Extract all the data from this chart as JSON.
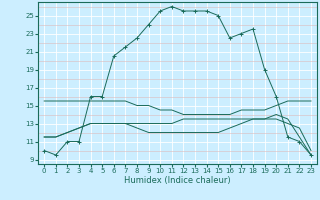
{
  "title": "",
  "xlabel": "Humidex (Indice chaleur)",
  "bg_color": "#cceeff",
  "line_color": "#1a6b5a",
  "xlim": [
    -0.5,
    23.5
  ],
  "ylim": [
    8.5,
    26.5
  ],
  "xticks": [
    0,
    1,
    2,
    3,
    4,
    5,
    6,
    7,
    8,
    9,
    10,
    11,
    12,
    13,
    14,
    15,
    16,
    17,
    18,
    19,
    20,
    21,
    22,
    23
  ],
  "yticks": [
    9,
    11,
    13,
    15,
    17,
    19,
    21,
    23,
    25
  ],
  "curve1_x": [
    0,
    1,
    2,
    3,
    4,
    5,
    6,
    7,
    8,
    9,
    10,
    11,
    12,
    13,
    14,
    15,
    16,
    17,
    18,
    19,
    20,
    21,
    22,
    23
  ],
  "curve1_y": [
    10.0,
    9.5,
    11.0,
    11.0,
    16.0,
    16.0,
    20.5,
    21.5,
    22.5,
    24.0,
    25.5,
    26.0,
    25.5,
    25.5,
    25.5,
    25.0,
    22.5,
    23.0,
    23.5,
    19.0,
    16.0,
    11.5,
    11.0,
    9.5
  ],
  "curve2_x": [
    0,
    1,
    2,
    3,
    4,
    5,
    6,
    7,
    8,
    9,
    10,
    11,
    12,
    13,
    14,
    15,
    16,
    17,
    18,
    19,
    20,
    21,
    22,
    23
  ],
  "curve2_y": [
    15.5,
    15.5,
    15.5,
    15.5,
    15.5,
    15.5,
    15.5,
    15.5,
    15.0,
    15.0,
    14.5,
    14.5,
    14.0,
    14.0,
    14.0,
    14.0,
    14.0,
    14.5,
    14.5,
    14.5,
    15.0,
    15.5,
    15.5,
    15.5
  ],
  "curve3_x": [
    0,
    1,
    2,
    3,
    4,
    5,
    6,
    7,
    8,
    9,
    10,
    11,
    12,
    13,
    14,
    15,
    16,
    17,
    18,
    19,
    20,
    21,
    22,
    23
  ],
  "curve3_y": [
    11.5,
    11.5,
    12.0,
    12.5,
    13.0,
    13.0,
    13.0,
    13.0,
    13.0,
    13.0,
    13.0,
    13.0,
    13.5,
    13.5,
    13.5,
    13.5,
    13.5,
    13.5,
    13.5,
    13.5,
    13.5,
    13.0,
    12.5,
    10.0
  ],
  "curve4_x": [
    0,
    1,
    2,
    3,
    4,
    5,
    6,
    7,
    8,
    9,
    10,
    11,
    12,
    13,
    14,
    15,
    16,
    17,
    18,
    19,
    20,
    21,
    22,
    23
  ],
  "curve4_y": [
    11.5,
    11.5,
    12.0,
    12.5,
    13.0,
    13.0,
    13.0,
    13.0,
    12.5,
    12.0,
    12.0,
    12.0,
    12.0,
    12.0,
    12.0,
    12.0,
    12.5,
    13.0,
    13.5,
    13.5,
    14.0,
    13.5,
    11.5,
    9.5
  ]
}
